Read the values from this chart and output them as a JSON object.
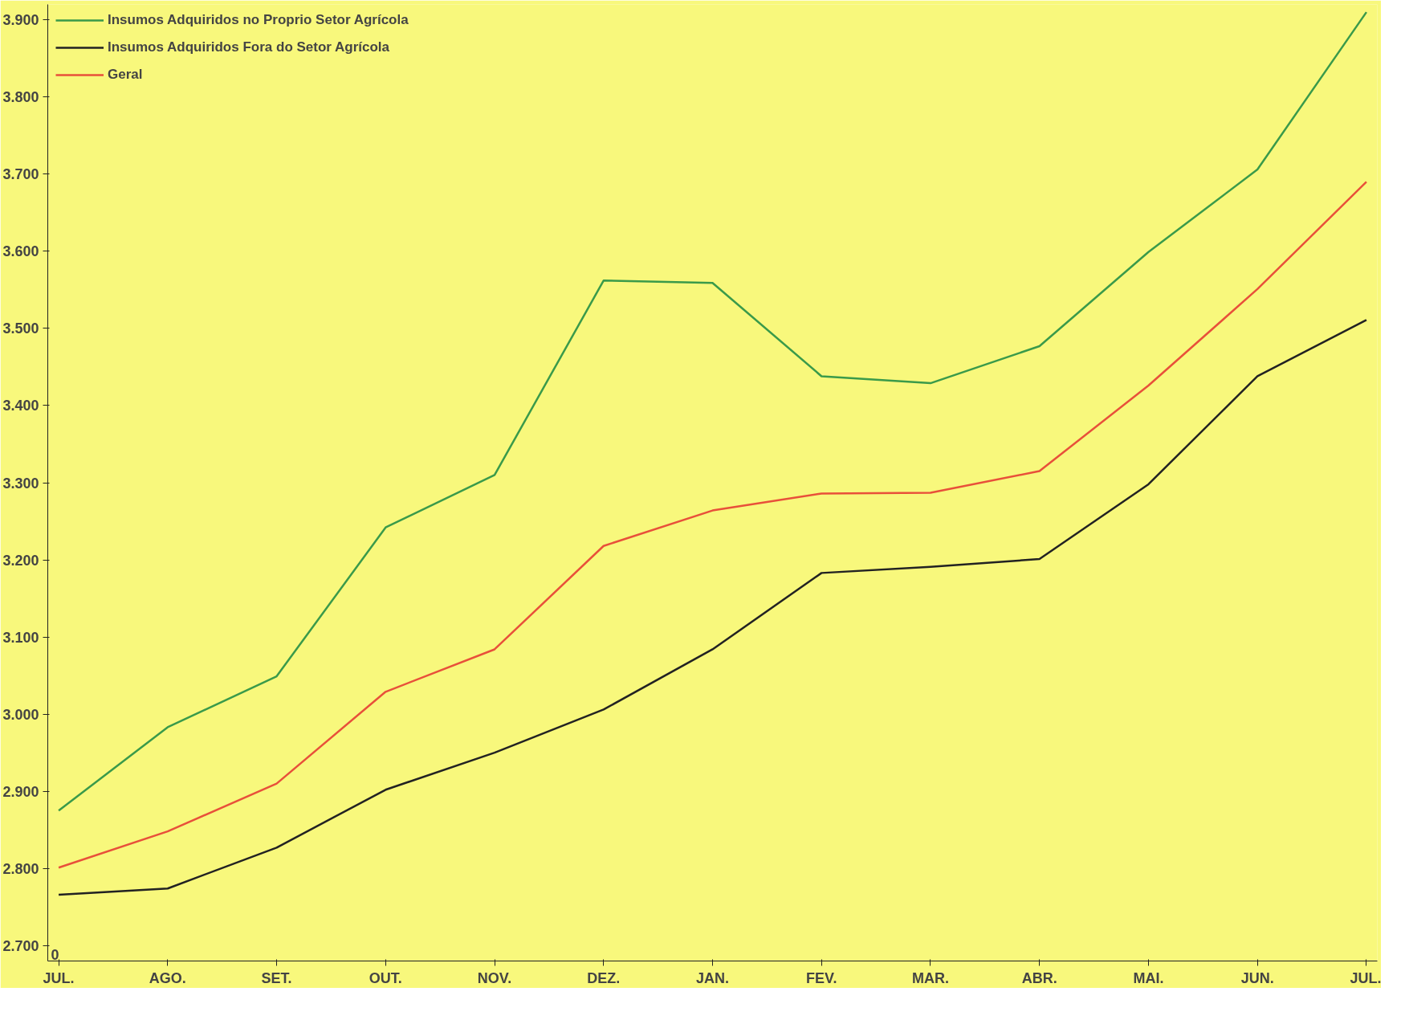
{
  "chart_data": {
    "type": "line",
    "categories": [
      "JUL.",
      "AGO.",
      "SET.",
      "OUT.",
      "NOV.",
      "DEZ.",
      "JAN.",
      "FEV.",
      "MAR.",
      "ABR.",
      "MAI.",
      "JUN.",
      "JUL."
    ],
    "series": [
      {
        "name": "Insumos Adquiridos no Proprio Setor Agrícola",
        "color": "#3a9a4a",
        "values": [
          2875,
          2983,
          3049,
          3242,
          3310,
          3562,
          3559,
          3438,
          3429,
          3477,
          3599,
          3706,
          3910
        ]
      },
      {
        "name": "Insumos Adquiridos Fora do Setor Agrícola",
        "color": "#222222",
        "values": [
          2766,
          2774,
          2827,
          2902,
          2950,
          3006,
          3084,
          3183,
          3191,
          3201,
          3298,
          3438,
          3511
        ]
      },
      {
        "name": "Geral",
        "color": "#e8503a",
        "values": [
          2801,
          2848,
          2910,
          3029,
          3084,
          3218,
          3264,
          3286,
          3287,
          3315,
          3426,
          3551,
          3690
        ]
      }
    ],
    "ylim": [
      2680,
      3920
    ],
    "yticks": [
      {
        "value": 2700,
        "label": "2.700"
      },
      {
        "value": 2800,
        "label": "2.800"
      },
      {
        "value": 2900,
        "label": "2.900"
      },
      {
        "value": 3000,
        "label": "3.000"
      },
      {
        "value": 3100,
        "label": "3.100"
      },
      {
        "value": 3200,
        "label": "3.200"
      },
      {
        "value": 3300,
        "label": "3.300"
      },
      {
        "value": 3400,
        "label": "3.400"
      },
      {
        "value": 3500,
        "label": "3.500"
      },
      {
        "value": 3600,
        "label": "3.600"
      },
      {
        "value": 3700,
        "label": "3.700"
      },
      {
        "value": 3800,
        "label": "3.800"
      },
      {
        "value": 3900,
        "label": "3.900"
      }
    ],
    "annotations": [
      "0"
    ],
    "grid": false,
    "legend": "top left",
    "marker": "none",
    "line_style": "solid"
  }
}
